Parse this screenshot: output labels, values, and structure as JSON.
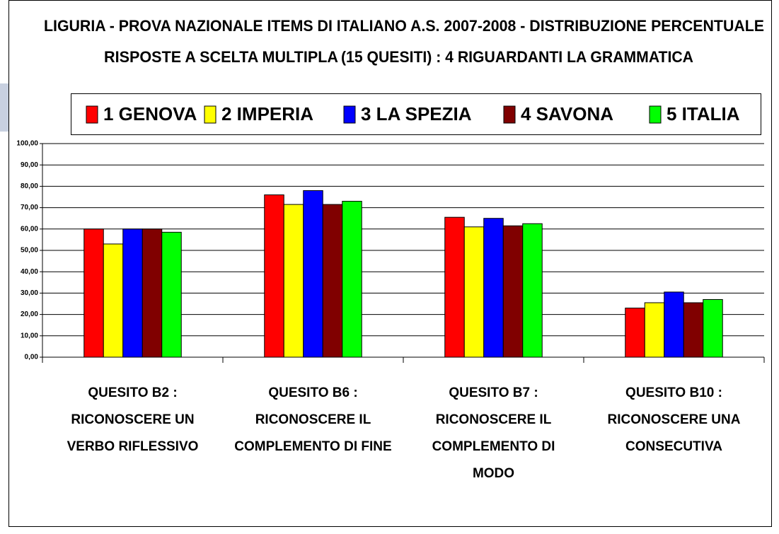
{
  "chart_data": {
    "type": "bar",
    "title": "LIGURIA - PROVA NAZIONALE ITEMS DI ITALIANO A.S. 2007-2008 - DISTRIBUZIONE PERCENTUALE",
    "subtitle": "RISPOSTE A SCELTA MULTIPLA",
    "annotation": "(15 QUESITI) : 4 RIGUARDANTI LA GRAMMATICA",
    "annotation_color": "#ff0000",
    "categories": [
      [
        "QUESITO B2 :",
        "RICONOSCERE UN",
        "VERBO RIFLESSIVO"
      ],
      [
        "QUESITO B6 :",
        "RICONOSCERE IL",
        "COMPLEMENTO DI FINE"
      ],
      [
        "QUESITO B7 :",
        "RICONOSCERE IL",
        "COMPLEMENTO DI",
        "MODO"
      ],
      [
        "QUESITO B10 :",
        "RICONOSCERE UNA",
        "CONSECUTIVA"
      ]
    ],
    "series": [
      {
        "name": "1 GENOVA",
        "color": "#ff0000",
        "values": [
          60,
          76,
          65.5,
          23
        ]
      },
      {
        "name": "2 IMPERIA",
        "color": "#ffff00",
        "values": [
          53,
          71.5,
          61,
          25.5
        ]
      },
      {
        "name": "3 LA SPEZIA",
        "color": "#0000ff",
        "values": [
          60,
          78,
          65,
          30.5
        ]
      },
      {
        "name": "4 SAVONA",
        "color": "#800000",
        "values": [
          60,
          71.5,
          61.5,
          25.5
        ]
      },
      {
        "name": "5 ITALIA",
        "color": "#00ff00",
        "values": [
          58.5,
          73,
          62.5,
          27
        ]
      }
    ],
    "ylim": [
      0,
      100
    ],
    "yticks": [
      {
        "value": 0,
        "label": "0,00"
      },
      {
        "value": 10,
        "label": "10,00"
      },
      {
        "value": 20,
        "label": "20,00"
      },
      {
        "value": 30,
        "label": "30,00"
      },
      {
        "value": 40,
        "label": "40,00"
      },
      {
        "value": 50,
        "label": "50,00"
      },
      {
        "value": 60,
        "label": "60,00"
      },
      {
        "value": 70,
        "label": "70,00"
      },
      {
        "value": 80,
        "label": "80,00"
      },
      {
        "value": 90,
        "label": "90,00"
      },
      {
        "value": 100,
        "label": "100,00"
      }
    ],
    "grid": true,
    "legend": "top"
  }
}
